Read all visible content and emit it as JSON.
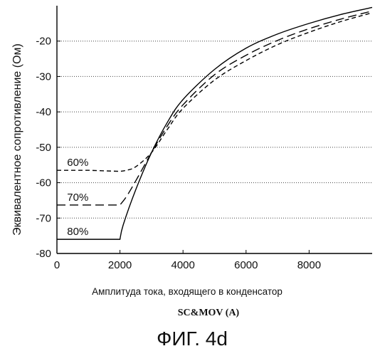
{
  "chart_data": {
    "type": "line",
    "caption": "ФИГ. 4d",
    "ylabel": "Эквивалентное сопротивление (Ом)",
    "xlabel_line1": "Амплитуда тока, входящего в конденсатор",
    "xlabel_line2": "SC&MOV (A)",
    "xlim": [
      0,
      10000
    ],
    "ylim": [
      -80,
      -10
    ],
    "x_ticks": [
      0,
      2000,
      4000,
      6000,
      8000
    ],
    "y_ticks": [
      -20,
      -30,
      -40,
      -50,
      -60,
      -70,
      -80
    ],
    "grid": "horizontal dotted",
    "series": [
      {
        "label": "60%",
        "style": "dashed",
        "x": [
          0,
          1000,
          2000,
          2200,
          2500,
          3000,
          3500,
          4000,
          5000,
          6000,
          7000,
          8000,
          9000,
          10000
        ],
        "y": [
          -56.5,
          -56.5,
          -56.8,
          -56.5,
          -55.5,
          -51.5,
          -45,
          -39,
          -31,
          -25.5,
          -21,
          -17.5,
          -14.5,
          -12
        ]
      },
      {
        "label": "70%",
        "style": "long-dashed",
        "x": [
          0,
          1000,
          2000,
          2200,
          2500,
          3000,
          3500,
          4000,
          5000,
          6000,
          7000,
          8000,
          9000,
          10000
        ],
        "y": [
          -66.3,
          -66.3,
          -66.3,
          -64,
          -59.5,
          -51.5,
          -44,
          -38,
          -29.5,
          -24,
          -19.8,
          -16.5,
          -13.8,
          -11.5
        ]
      },
      {
        "label": "80%",
        "style": "solid",
        "x": [
          0,
          1000,
          2000,
          2100,
          2500,
          3000,
          3500,
          4000,
          5000,
          6000,
          7000,
          8000,
          9000,
          10000
        ],
        "y": [
          -76,
          -76,
          -76,
          -72,
          -62,
          -51.5,
          -43,
          -36.5,
          -28,
          -22,
          -18,
          -15,
          -12.5,
          -10.5
        ]
      }
    ]
  }
}
